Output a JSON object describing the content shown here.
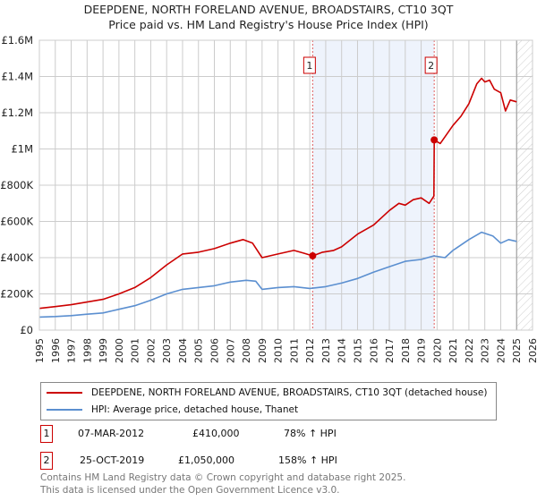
{
  "title": "DEEPDENE, NORTH FORELAND AVENUE, BROADSTAIRS, CT10 3QT",
  "subtitle": "Price paid vs. HM Land Registry's House Price Index (HPI)",
  "chart_data": {
    "type": "line",
    "title": "DEEPDENE, NORTH FORELAND AVENUE, BROADSTAIRS, CT10 3QT",
    "xlim": [
      1995,
      2026
    ],
    "ylim": [
      0,
      1600000
    ],
    "grid": true,
    "x_ticks": [
      "1995",
      "1996",
      "1997",
      "1998",
      "1999",
      "2000",
      "2001",
      "2002",
      "2003",
      "2004",
      "2005",
      "2006",
      "2007",
      "2008",
      "2009",
      "2010",
      "2011",
      "2012",
      "2013",
      "2014",
      "2015",
      "2016",
      "2017",
      "2018",
      "2019",
      "2020",
      "2021",
      "2022",
      "2023",
      "2024",
      "2025",
      "2026"
    ],
    "y_ticks": [
      {
        "v": 0,
        "label": "£0"
      },
      {
        "v": 200000,
        "label": "£200K"
      },
      {
        "v": 400000,
        "label": "£400K"
      },
      {
        "v": 600000,
        "label": "£600K"
      },
      {
        "v": 800000,
        "label": "£800K"
      },
      {
        "v": 1000000,
        "label": "£1M"
      },
      {
        "v": 1200000,
        "label": "£1.2M"
      },
      {
        "v": 1400000,
        "label": "£1.4M"
      },
      {
        "v": 1600000,
        "label": "£1.6M"
      }
    ],
    "shaded_range": [
      2012.18,
      2019.82
    ],
    "forecast_from": 2025.0,
    "colors": {
      "property": "#cc0000",
      "hpi": "#5b8fd0",
      "shade": "#eef3fc"
    },
    "series": [
      {
        "name": "DEEPDENE, NORTH FORELAND AVENUE, BROADSTAIRS, CT10 3QT (detached house)",
        "x": [
          1995,
          1996,
          1997,
          1998,
          1999,
          2000,
          2001,
          2002,
          2003,
          2004,
          2005,
          2006,
          2007,
          2007.8,
          2008.4,
          2009,
          2010,
          2011,
          2011.6,
          2012.18,
          2012.8,
          2013.5,
          2014,
          2015,
          2016,
          2017,
          2017.6,
          2018,
          2018.5,
          2019,
          2019.5,
          2019.8,
          2019.82,
          2020.2,
          2021,
          2021.5,
          2022,
          2022.5,
          2022.8,
          2023,
          2023.3,
          2023.6,
          2024,
          2024.3,
          2024.6,
          2025
        ],
        "values": [
          120000,
          130000,
          140000,
          155000,
          170000,
          200000,
          235000,
          290000,
          360000,
          420000,
          430000,
          450000,
          480000,
          500000,
          480000,
          400000,
          420000,
          440000,
          425000,
          410000,
          430000,
          440000,
          460000,
          530000,
          580000,
          660000,
          700000,
          690000,
          720000,
          730000,
          700000,
          740000,
          1050000,
          1030000,
          1130000,
          1180000,
          1250000,
          1360000,
          1390000,
          1370000,
          1380000,
          1330000,
          1310000,
          1210000,
          1270000,
          1260000
        ]
      },
      {
        "name": "HPI: Average price, detached house, Thanet",
        "x": [
          1995,
          1996,
          1997,
          1998,
          1999,
          2000,
          2001,
          2002,
          2003,
          2004,
          2005,
          2006,
          2007,
          2008,
          2008.6,
          2009,
          2010,
          2011,
          2012,
          2013,
          2014,
          2015,
          2016,
          2017,
          2018,
          2019,
          2019.8,
          2020.5,
          2021,
          2022,
          2022.8,
          2023.5,
          2024,
          2024.5,
          2025
        ],
        "values": [
          72000,
          75000,
          80000,
          88000,
          95000,
          115000,
          135000,
          165000,
          200000,
          225000,
          235000,
          245000,
          265000,
          275000,
          270000,
          225000,
          235000,
          240000,
          230000,
          240000,
          260000,
          285000,
          320000,
          350000,
          380000,
          390000,
          410000,
          400000,
          440000,
          500000,
          540000,
          520000,
          480000,
          500000,
          490000
        ]
      }
    ],
    "sales": [
      {
        "label": "1",
        "x": 2012.18,
        "value": 410000
      },
      {
        "label": "2",
        "x": 2019.82,
        "value": 1050000
      }
    ]
  },
  "legend": [
    "DEEPDENE, NORTH FORELAND AVENUE, BROADSTAIRS, CT10 3QT (detached house)",
    "HPI: Average price, detached house, Thanet"
  ],
  "transactions": [
    {
      "num": "1",
      "date": "07-MAR-2012",
      "price": "£410,000",
      "hpi": "78% ↑ HPI"
    },
    {
      "num": "2",
      "date": "25-OCT-2019",
      "price": "£1,050,000",
      "hpi": "158% ↑ HPI"
    }
  ],
  "footer": [
    "Contains HM Land Registry data © Crown copyright and database right 2025.",
    "This data is licensed under the Open Government Licence v3.0."
  ]
}
